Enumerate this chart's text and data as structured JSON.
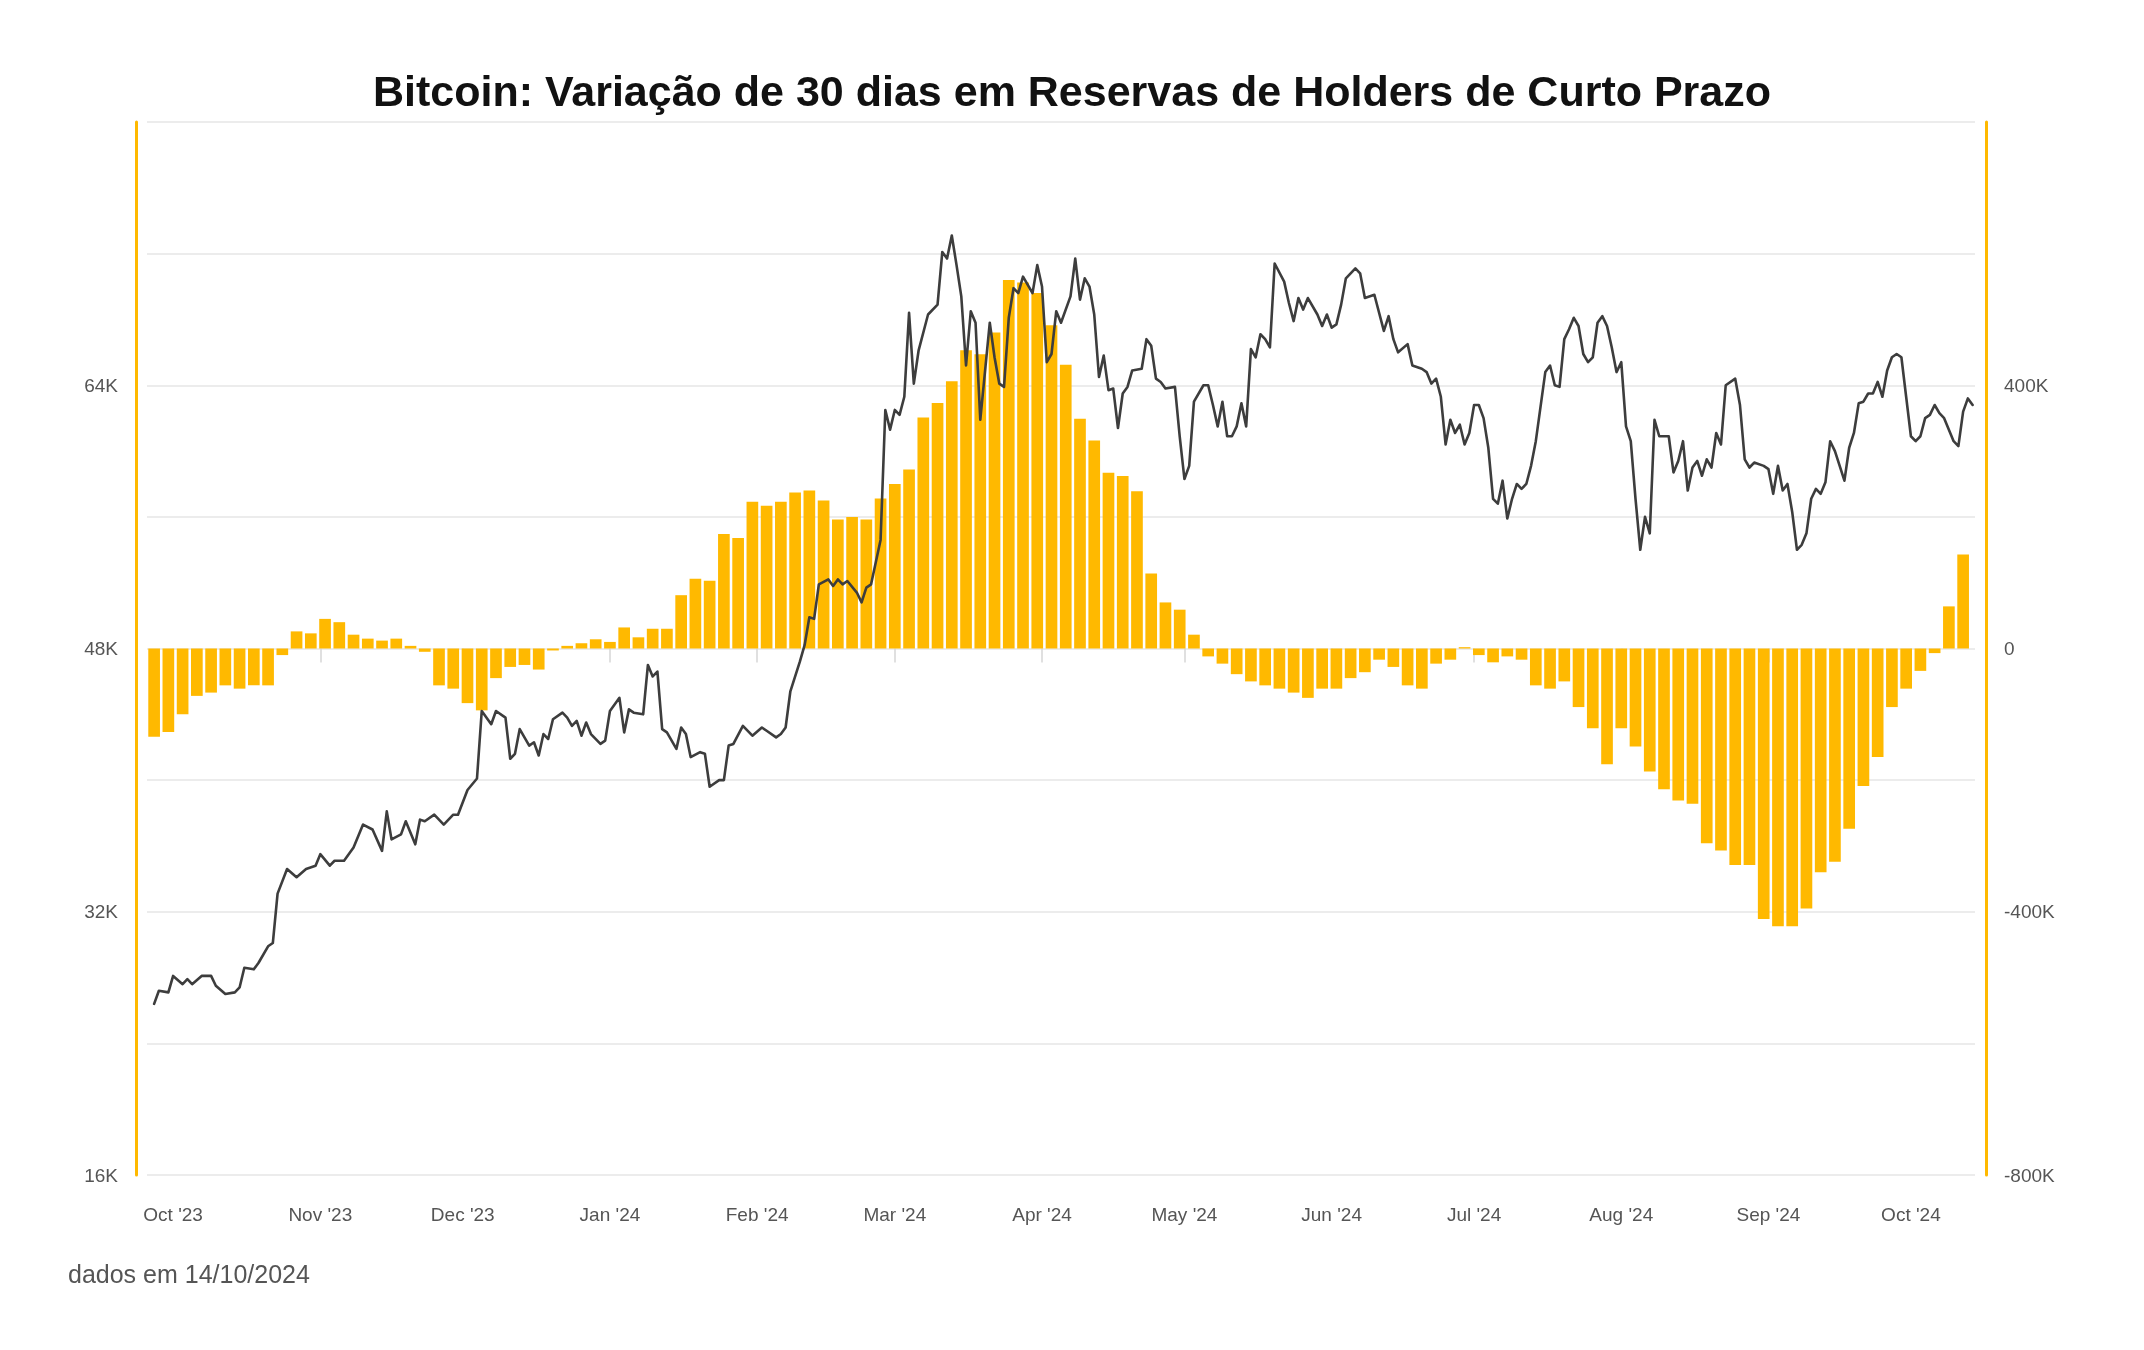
{
  "chart_data": {
    "type": "bar",
    "title": "Bitcoin: Variação de 30 dias em Reservas de Holders de Curto Prazo",
    "annotations": [
      "dados em 14/10/2024"
    ],
    "xlim": [
      "2023-09-25T12:00",
      "2024-10-14T12:00"
    ],
    "xticks": [
      {
        "value": "2023-10-01",
        "label": "Oct '23"
      },
      {
        "value": "2023-11-01",
        "label": "Nov '23"
      },
      {
        "value": "2023-12-01",
        "label": "Dec '23"
      },
      {
        "value": "2024-01-01",
        "label": "Jan '24"
      },
      {
        "value": "2024-02-01",
        "label": "Feb '24"
      },
      {
        "value": "2024-03-01",
        "label": "Mar '24"
      },
      {
        "value": "2024-04-01",
        "label": "Apr '24"
      },
      {
        "value": "2024-05-01",
        "label": "May '24"
      },
      {
        "value": "2024-06-01",
        "label": "Jun '24"
      },
      {
        "value": "2024-07-01",
        "label": "Jul '24"
      },
      {
        "value": "2024-08-01",
        "label": "Aug '24"
      },
      {
        "value": "2024-09-01",
        "label": "Sep '24"
      },
      {
        "value": "2024-10-01",
        "label": "Oct '24"
      }
    ],
    "ylim": [
      16000,
      80000
    ],
    "yticks": [
      {
        "value": 16000,
        "label": "16K"
      },
      {
        "value": 24000,
        "label": null
      },
      {
        "value": 32000,
        "label": "32K"
      },
      {
        "value": 40000,
        "label": null
      },
      {
        "value": 48000,
        "label": "48K"
      },
      {
        "value": 56000,
        "label": null
      },
      {
        "value": 64000,
        "label": "64K"
      },
      {
        "value": 72000,
        "label": null
      },
      {
        "value": 80000,
        "label": null
      }
    ],
    "y2lim": [
      -800000,
      800000
    ],
    "y2ticks": [
      {
        "value": -800000,
        "label": "-800K"
      },
      {
        "value": -400000,
        "label": "-400K"
      },
      0,
      {
        "value": 400000,
        "label": "400K"
      }
    ],
    "grid": "y",
    "marker": "none",
    "series": [
      {
        "axis": "y2",
        "color": "#ffb900",
        "x": [
          "2023-09-27",
          "2023-09-30",
          "2023-10-03",
          "2023-10-06",
          "2023-10-09",
          "2023-10-12",
          "2023-10-15",
          "2023-10-18",
          "2023-10-21",
          "2023-10-24",
          "2023-10-27",
          "2023-10-30",
          "2023-11-02",
          "2023-11-05",
          "2023-11-08",
          "2023-11-11",
          "2023-11-14",
          "2023-11-17",
          "2023-11-20",
          "2023-11-23",
          "2023-11-26",
          "2023-11-29",
          "2023-12-02",
          "2023-12-05",
          "2023-12-08",
          "2023-12-11",
          "2023-12-14",
          "2023-12-17",
          "2023-12-20",
          "2023-12-23",
          "2023-12-26",
          "2023-12-29",
          "2024-01-01",
          "2024-01-04",
          "2024-01-07",
          "2024-01-10",
          "2024-01-13",
          "2024-01-16",
          "2024-01-19",
          "2024-01-22",
          "2024-01-25",
          "2024-01-28",
          "2024-01-31",
          "2024-02-03",
          "2024-02-06",
          "2024-02-09",
          "2024-02-12",
          "2024-02-15",
          "2024-02-18",
          "2024-02-21",
          "2024-02-24",
          "2024-02-27",
          "2024-03-01",
          "2024-03-04",
          "2024-03-07",
          "2024-03-10",
          "2024-03-13",
          "2024-03-16",
          "2024-03-19",
          "2024-03-22",
          "2024-03-25",
          "2024-03-28",
          "2024-03-31",
          "2024-04-03",
          "2024-04-06",
          "2024-04-09",
          "2024-04-12",
          "2024-04-15",
          "2024-04-18",
          "2024-04-21",
          "2024-04-24",
          "2024-04-27",
          "2024-04-30",
          "2024-05-03",
          "2024-05-06",
          "2024-05-09",
          "2024-05-12",
          "2024-05-15",
          "2024-05-18",
          "2024-05-21",
          "2024-05-24",
          "2024-05-27",
          "2024-05-30",
          "2024-06-02",
          "2024-06-05",
          "2024-06-08",
          "2024-06-11",
          "2024-06-14",
          "2024-06-17",
          "2024-06-20",
          "2024-06-23",
          "2024-06-26",
          "2024-06-29",
          "2024-07-02",
          "2024-07-05",
          "2024-07-08",
          "2024-07-11",
          "2024-07-14",
          "2024-07-17",
          "2024-07-20",
          "2024-07-23",
          "2024-07-26",
          "2024-07-29",
          "2024-08-01",
          "2024-08-04",
          "2024-08-07",
          "2024-08-10",
          "2024-08-13",
          "2024-08-16",
          "2024-08-19",
          "2024-08-22",
          "2024-08-25",
          "2024-08-28",
          "2024-08-31",
          "2024-09-03",
          "2024-09-06",
          "2024-09-09",
          "2024-09-12",
          "2024-09-15",
          "2024-09-18",
          "2024-09-21",
          "2024-09-24",
          "2024-09-27",
          "2024-09-30",
          "2024-10-03",
          "2024-10-06",
          "2024-10-09",
          "2024-10-12"
        ],
        "values": [
          -134000,
          -127000,
          -100000,
          -72000,
          -67000,
          -56000,
          -61000,
          -56000,
          -56000,
          -10000,
          26000,
          23000,
          45000,
          40000,
          21000,
          15000,
          12000,
          15000,
          4000,
          -5000,
          -56000,
          -61000,
          -83000,
          -94000,
          -45000,
          -28000,
          -25000,
          -32000,
          -3000,
          4000,
          8000,
          14000,
          10000,
          32000,
          17000,
          30000,
          30000,
          81000,
          106000,
          103000,
          174000,
          168000,
          223000,
          217000,
          223000,
          237000,
          240000,
          225000,
          196000,
          200000,
          196000,
          228000,
          250000,
          272000,
          351000,
          373000,
          406000,
          453000,
          447000,
          480000,
          560000,
          556000,
          540000,
          491000,
          431000,
          349000,
          316000,
          267000,
          262000,
          239000,
          114000,
          70000,
          59000,
          21000,
          -12000,
          -23000,
          -39000,
          -50000,
          -56000,
          -61000,
          -67000,
          -75000,
          -61000,
          -61000,
          -45000,
          -36000,
          -17000,
          -28000,
          -56000,
          -61000,
          -23000,
          -17000,
          2000,
          -10000,
          -21000,
          -12000,
          -17000,
          -56000,
          -61000,
          -50000,
          -89000,
          -121000,
          -176000,
          -121000,
          -149000,
          -187000,
          -214000,
          -231000,
          -236000,
          -296000,
          -307000,
          -329000,
          -329000,
          -411000,
          -422000,
          -422000,
          -395000,
          -340000,
          -324000,
          -274000,
          -209000,
          -165000,
          -89000,
          -61000,
          -34000,
          -7000,
          64000,
          143000
        ]
      },
      {
        "type": "line",
        "color": "#3d3d3d",
        "x": [
          "2023-09-27",
          "2023-09-28",
          "2023-09-30",
          "2023-10-01",
          "2023-10-03",
          "2023-10-04",
          "2023-10-05",
          "2023-10-07",
          "2023-10-09",
          "2023-10-10",
          "2023-10-12",
          "2023-10-14",
          "2023-10-15",
          "2023-10-16",
          "2023-10-18",
          "2023-10-19",
          "2023-10-21",
          "2023-10-22",
          "2023-10-23",
          "2023-10-25",
          "2023-10-27",
          "2023-10-29",
          "2023-10-31",
          "2023-11-01",
          "2023-11-03",
          "2023-11-04",
          "2023-11-06",
          "2023-11-08",
          "2023-11-10",
          "2023-11-12",
          "2023-11-14",
          "2023-11-15",
          "2023-11-16",
          "2023-11-18",
          "2023-11-19",
          "2023-11-21",
          "2023-11-22",
          "2023-11-23",
          "2023-11-25",
          "2023-11-27",
          "2023-11-29",
          "2023-11-30",
          "2023-12-02",
          "2023-12-04",
          "2023-12-05",
          "2023-12-07",
          "2023-12-08",
          "2023-12-10",
          "2023-12-11",
          "2023-12-12",
          "2023-12-13",
          "2023-12-15",
          "2023-12-16",
          "2023-12-17",
          "2023-12-18",
          "2023-12-19",
          "2023-12-20",
          "2023-12-22",
          "2023-12-23",
          "2023-12-24",
          "2023-12-25",
          "2023-12-26",
          "2023-12-27",
          "2023-12-28",
          "2023-12-30",
          "2023-12-31",
          "2024-01-01",
          "2024-01-03",
          "2024-01-04",
          "2024-01-05",
          "2024-01-06",
          "2024-01-08",
          "2024-01-09",
          "2024-01-10",
          "2024-01-11",
          "2024-01-12",
          "2024-01-13",
          "2024-01-15",
          "2024-01-16",
          "2024-01-17",
          "2024-01-18",
          "2024-01-20",
          "2024-01-21",
          "2024-01-22",
          "2024-01-24",
          "2024-01-25",
          "2024-01-26",
          "2024-01-27",
          "2024-01-29",
          "2024-01-31",
          "2024-02-02",
          "2024-02-03",
          "2024-02-05",
          "2024-02-06",
          "2024-02-07",
          "2024-02-08",
          "2024-02-10",
          "2024-02-11",
          "2024-02-12",
          "2024-02-13",
          "2024-02-14",
          "2024-02-16",
          "2024-02-17",
          "2024-02-18",
          "2024-02-19",
          "2024-02-20",
          "2024-02-22",
          "2024-02-23",
          "2024-02-24",
          "2024-02-25",
          "2024-02-27",
          "2024-02-28",
          "2024-02-29",
          "2024-03-01",
          "2024-03-02",
          "2024-03-03",
          "2024-03-04",
          "2024-03-05",
          "2024-03-06",
          "2024-03-08",
          "2024-03-10",
          "2024-03-11",
          "2024-03-12",
          "2024-03-13",
          "2024-03-14",
          "2024-03-15",
          "2024-03-16",
          "2024-03-17",
          "2024-03-18",
          "2024-03-19",
          "2024-03-21",
          "2024-03-22",
          "2024-03-23",
          "2024-03-24",
          "2024-03-25",
          "2024-03-26",
          "2024-03-27",
          "2024-03-28",
          "2024-03-30",
          "2024-03-31",
          "2024-04-01",
          "2024-04-02",
          "2024-04-03",
          "2024-04-04",
          "2024-04-05",
          "2024-04-07",
          "2024-04-08",
          "2024-04-09",
          "2024-04-10",
          "2024-04-11",
          "2024-04-12",
          "2024-04-13",
          "2024-04-14",
          "2024-04-15",
          "2024-04-16",
          "2024-04-17",
          "2024-04-18",
          "2024-04-19",
          "2024-04-20",
          "2024-04-22",
          "2024-04-23",
          "2024-04-24",
          "2024-04-25",
          "2024-04-26",
          "2024-04-27",
          "2024-04-29",
          "2024-04-30",
          "2024-05-01",
          "2024-05-02",
          "2024-05-03",
          "2024-05-05",
          "2024-05-06",
          "2024-05-07",
          "2024-05-08",
          "2024-05-09",
          "2024-05-10",
          "2024-05-11",
          "2024-05-12",
          "2024-05-13",
          "2024-05-14",
          "2024-05-15",
          "2024-05-16",
          "2024-05-17",
          "2024-05-18",
          "2024-05-19",
          "2024-05-20",
          "2024-05-22",
          "2024-05-23",
          "2024-05-24",
          "2024-05-25",
          "2024-05-26",
          "2024-05-27",
          "2024-05-29",
          "2024-05-30",
          "2024-05-31",
          "2024-06-01",
          "2024-06-02",
          "2024-06-03",
          "2024-06-04",
          "2024-06-06",
          "2024-06-07",
          "2024-06-08",
          "2024-06-10",
          "2024-06-12",
          "2024-06-13",
          "2024-06-14",
          "2024-06-15",
          "2024-06-17",
          "2024-06-18",
          "2024-06-20",
          "2024-06-21",
          "2024-06-22",
          "2024-06-23",
          "2024-06-24",
          "2024-06-25",
          "2024-06-26",
          "2024-06-27",
          "2024-06-28",
          "2024-06-29",
          "2024-06-30",
          "2024-07-01",
          "2024-07-02",
          "2024-07-03",
          "2024-07-04",
          "2024-07-05",
          "2024-07-06",
          "2024-07-07",
          "2024-07-08",
          "2024-07-09",
          "2024-07-10",
          "2024-07-11",
          "2024-07-12",
          "2024-07-13",
          "2024-07-14",
          "2024-07-16",
          "2024-07-17",
          "2024-07-18",
          "2024-07-19",
          "2024-07-20",
          "2024-07-21",
          "2024-07-22",
          "2024-07-23",
          "2024-07-24",
          "2024-07-25",
          "2024-07-26",
          "2024-07-27",
          "2024-07-28",
          "2024-07-29",
          "2024-07-30",
          "2024-07-31",
          "2024-08-01",
          "2024-08-02",
          "2024-08-03",
          "2024-08-04",
          "2024-08-05",
          "2024-08-06",
          "2024-08-07",
          "2024-08-08",
          "2024-08-09",
          "2024-08-11",
          "2024-08-12",
          "2024-08-13",
          "2024-08-14",
          "2024-08-15",
          "2024-08-16",
          "2024-08-17",
          "2024-08-18",
          "2024-08-19",
          "2024-08-20",
          "2024-08-21",
          "2024-08-22",
          "2024-08-23",
          "2024-08-25",
          "2024-08-26",
          "2024-08-27",
          "2024-08-28",
          "2024-08-29",
          "2024-08-31",
          "2024-09-01",
          "2024-09-02",
          "2024-09-03",
          "2024-09-04",
          "2024-09-05",
          "2024-09-06",
          "2024-09-07",
          "2024-09-08",
          "2024-09-09",
          "2024-09-10",
          "2024-09-11",
          "2024-09-12",
          "2024-09-13",
          "2024-09-14",
          "2024-09-15",
          "2024-09-16",
          "2024-09-17",
          "2024-09-18",
          "2024-09-19",
          "2024-09-20",
          "2024-09-21",
          "2024-09-22",
          "2024-09-23",
          "2024-09-24",
          "2024-09-25",
          "2024-09-26",
          "2024-09-27",
          "2024-09-28",
          "2024-09-29",
          "2024-09-30",
          "2024-10-01",
          "2024-10-02",
          "2024-10-03",
          "2024-10-04",
          "2024-10-05",
          "2024-10-06",
          "2024-10-07",
          "2024-10-08",
          "2024-10-10",
          "2024-10-11",
          "2024-10-12",
          "2024-10-13",
          "2024-10-14"
        ],
        "values": [
          26400,
          27200,
          27100,
          28100,
          27600,
          27900,
          27600,
          28100,
          28100,
          27500,
          27000,
          27100,
          27400,
          28600,
          28500,
          28900,
          29900,
          30100,
          33100,
          34600,
          34100,
          34600,
          34800,
          35500,
          34800,
          35100,
          35100,
          35900,
          37300,
          37000,
          35700,
          38100,
          36400,
          36700,
          37500,
          36100,
          37600,
          37500,
          37900,
          37300,
          37900,
          37900,
          39400,
          40100,
          44200,
          43400,
          44200,
          43800,
          41300,
          41600,
          43100,
          42100,
          42300,
          41500,
          42800,
          42500,
          43700,
          44100,
          43800,
          43300,
          43600,
          42700,
          43500,
          42800,
          42200,
          42400,
          44200,
          45000,
          42900,
          44300,
          44100,
          44000,
          47000,
          46300,
          46600,
          43100,
          42900,
          41900,
          43200,
          42800,
          41400,
          41700,
          41600,
          39600,
          40000,
          40000,
          42100,
          42200,
          43300,
          42700,
          43200,
          43000,
          42600,
          42800,
          43200,
          45400,
          47200,
          48200,
          49900,
          49800,
          51900,
          52200,
          51800,
          52200,
          51900,
          52100,
          51400,
          50800,
          51700,
          51900,
          54600,
          62500,
          61300,
          62500,
          62200,
          63300,
          68400,
          64100,
          66100,
          68300,
          68900,
          72100,
          71700,
          73100,
          71300,
          69400,
          65200,
          68500,
          67800,
          61900,
          67800,
          65700,
          64100,
          63900,
          68100,
          69900,
          69600,
          70600,
          69600,
          71300,
          70000,
          65400,
          65900,
          68500,
          67800,
          69400,
          71700,
          69200,
          70500,
          70000,
          68300,
          64500,
          65800,
          63700,
          63800,
          61400,
          63500,
          63900,
          64900,
          65000,
          66800,
          66400,
          64400,
          64200,
          63800,
          63900,
          60900,
          58300,
          59100,
          63000,
          64000,
          64000,
          62800,
          61500,
          63000,
          60900,
          60900,
          61500,
          62900,
          61500,
          66200,
          65700,
          67100,
          66800,
          66300,
          71400,
          70300,
          69000,
          67900,
          69300,
          68600,
          69300,
          68300,
          67600,
          68300,
          67500,
          67700,
          68900,
          70500,
          71100,
          70800,
          69300,
          69500,
          67300,
          68200,
          66800,
          66000,
          66500,
          65200,
          65000,
          64800,
          64100,
          64400,
          63300,
          60400,
          61900,
          61100,
          61600,
          60400,
          61100,
          62800,
          62800,
          62000,
          60200,
          57100,
          56800,
          58200,
          55900,
          57100,
          58000,
          57700,
          58000,
          59100,
          60600,
          64800,
          65200,
          64000,
          63900,
          66800,
          67400,
          68100,
          67600,
          65900,
          65400,
          65700,
          67800,
          68200,
          67600,
          66300,
          64800,
          65400,
          61500,
          60600,
          57100,
          54000,
          56000,
          55000,
          61900,
          60900,
          60900,
          58700,
          59400,
          60600,
          57600,
          59000,
          59400,
          58500,
          59500,
          59000,
          61100,
          60400,
          64000,
          64400,
          62800,
          59500,
          59000,
          59300,
          59100,
          58900,
          57400,
          59100,
          57600,
          58000,
          56300,
          54000,
          54300,
          55000,
          57100,
          57700,
          57400,
          58100,
          60600,
          60000,
          59100,
          58200,
          60200,
          61100,
          62900,
          63000,
          63500,
          63500,
          64200,
          63300,
          64900,
          65700,
          65900,
          65700,
          63300,
          60900,
          60600,
          60900,
          62000,
          62200,
          62800,
          62300,
          62000,
          60600,
          60300,
          62400,
          63200,
          62800
        ]
      }
    ]
  }
}
